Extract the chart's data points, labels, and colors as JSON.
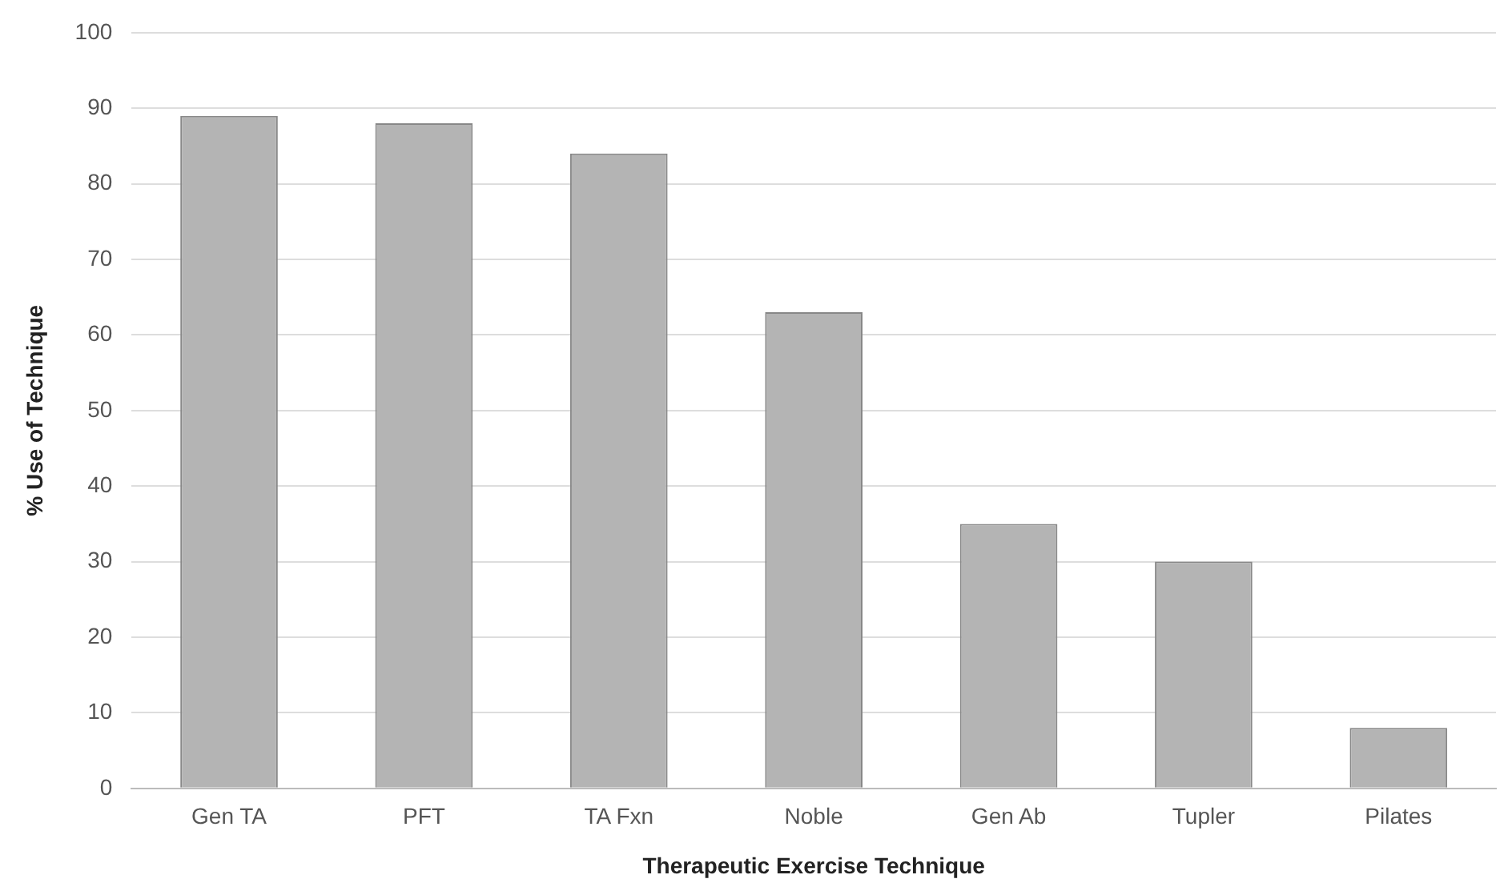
{
  "chart_data": {
    "type": "bar",
    "xlabel": "Therapeutic Exercise Technique",
    "ylabel": "% Use of Technique",
    "categories": [
      "Gen TA",
      "PFT",
      "TA Fxn",
      "Noble",
      "Gen Ab",
      "Tupler",
      "Pilates"
    ],
    "values": [
      89,
      88,
      84,
      63,
      35,
      30,
      8
    ],
    "color": "#b4b4b4",
    "ylim": [
      0,
      100
    ],
    "yticks": [
      0,
      10,
      20,
      30,
      40,
      50,
      60,
      70,
      80,
      90,
      100
    ],
    "grid": "y",
    "legend": false
  }
}
